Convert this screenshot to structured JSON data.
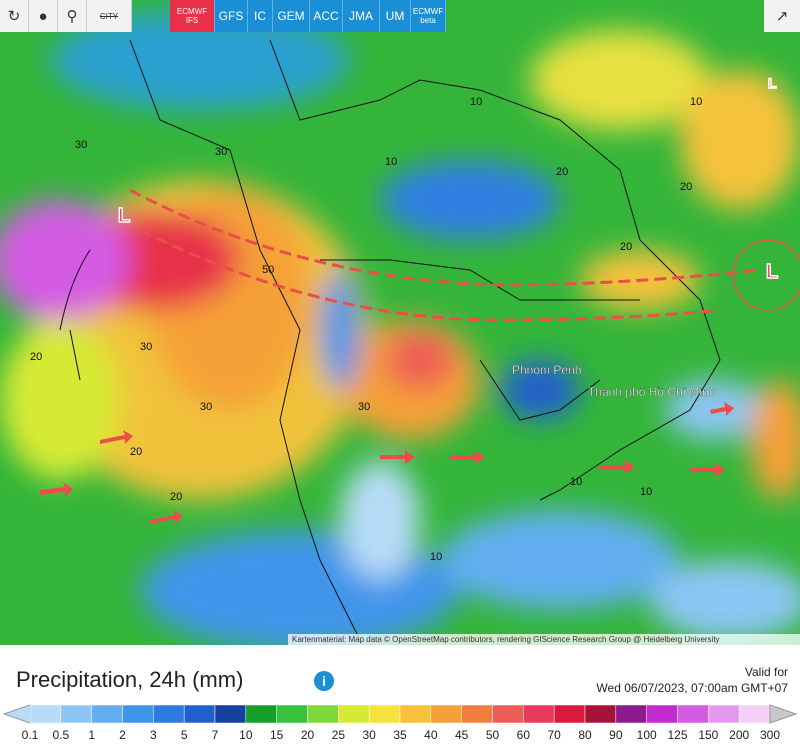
{
  "toolbar": {
    "city": "CITY",
    "models": [
      "ECMWF IFS",
      "GFS",
      "IC",
      "GEM",
      "ACC",
      "JMA",
      "UM",
      "ECMWF beta"
    ]
  },
  "map": {
    "cities": [
      "Phnom Penh",
      "Thành phố Hồ Chí Minh"
    ],
    "lows": [
      "L",
      "L",
      "L"
    ],
    "contours": [
      "30",
      "50",
      "30",
      "20",
      "10",
      "10",
      "20",
      "30",
      "20",
      "10",
      "20",
      "10",
      "30",
      "20",
      "10",
      "10",
      "20",
      "30"
    ],
    "attribution": "Kartenmaterial: Map data © OpenStreetMap contributors, rendering GIScience Research Group @ Heidelberg University"
  },
  "footer": {
    "title": "Precipitation, 24h (mm)",
    "info": "i",
    "valid_label": "Valid for",
    "valid_time": "Wed 06/07/2023, 07:00am GMT+07"
  },
  "legend": {
    "labels": [
      "0.1",
      "0.5",
      "1",
      "2",
      "3",
      "5",
      "7",
      "10",
      "15",
      "20",
      "25",
      "30",
      "35",
      "40",
      "45",
      "50",
      "60",
      "70",
      "80",
      "90",
      "100",
      "125",
      "150",
      "200",
      "300"
    ],
    "colors": [
      "#b7dcf7",
      "#8cc6f4",
      "#62aef0",
      "#3f95ea",
      "#2d7be0",
      "#2060cc",
      "#163fa0",
      "#14a02a",
      "#36c23b",
      "#7ed83a",
      "#d6ea35",
      "#f5e23a",
      "#f7c23a",
      "#f5a039",
      "#f27e3e",
      "#ee5d55",
      "#e83a5a",
      "#d81a3c",
      "#a8123a",
      "#8c1c8e",
      "#c42ad0",
      "#d45be4",
      "#e49af0",
      "#f4d0f6",
      "#c8c8c8"
    ]
  }
}
